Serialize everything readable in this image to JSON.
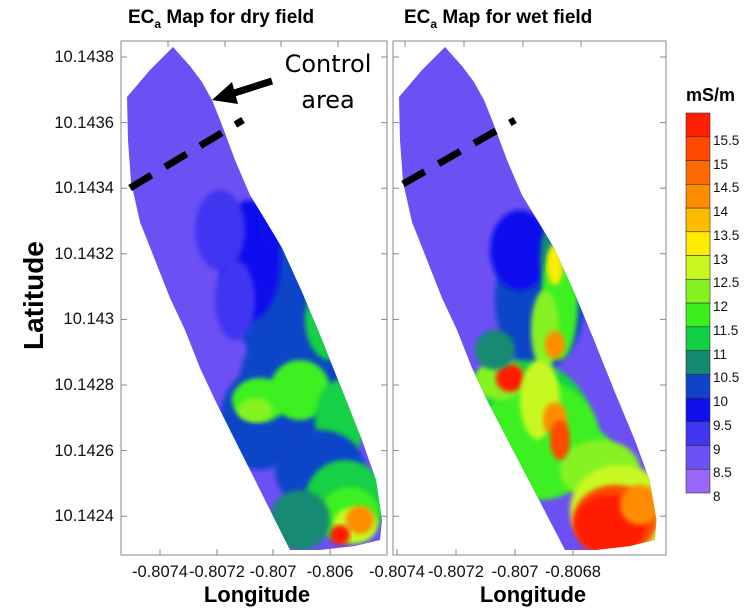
{
  "chart_data": [
    {
      "type": "heatmap",
      "title_main": "EC",
      "title_sub": "a",
      "title_rest": " Map for dry field",
      "xlabel": "Longitude",
      "ylabel": "Latitude",
      "xticks": [
        "-0.8074",
        "-0.8072",
        "-0.807",
        "-0.806"
      ],
      "yticks": [
        "10.1438",
        "10.1436",
        "10.1434",
        "10.1432",
        "10.143",
        "10.1428",
        "10.1426",
        "10.1424"
      ],
      "annotation": [
        "Control",
        "area"
      ],
      "description_of_values": "mostly 8.5-10 mS/m in the north (control area), 10-12 in the center, up to 15.5 at the southeast end"
    },
    {
      "type": "heatmap",
      "title_main": "EC",
      "title_sub": "a",
      "title_rest": " Map for wet field",
      "xlabel": "Longitude",
      "xticks": [
        "-0.8074",
        "-0.8072",
        "-0.807",
        "-0.8068"
      ],
      "description_of_values": "8.5-9 mS/m in the north, 11-16 in the central and southern parts"
    }
  ],
  "colorbar": {
    "unit": "mS/m",
    "min": 8,
    "max": 16,
    "step": 0.5,
    "tick_labels": [
      "8",
      "8.5",
      "9",
      "9.5",
      "10",
      "10.5",
      "11",
      "11.5",
      "12",
      "12.5",
      "13",
      "13.5",
      "14",
      "14.5",
      "15",
      "15.5"
    ],
    "colors": [
      "#9a66fa",
      "#6c50f4",
      "#4136f0",
      "#1010ee",
      "#1044c8",
      "#128a72",
      "#12d044",
      "#3cf020",
      "#86f222",
      "#c8f820",
      "#ffec00",
      "#ffbb00",
      "#ff8c00",
      "#ff6a00",
      "#ff4800",
      "#ff1e00"
    ]
  }
}
